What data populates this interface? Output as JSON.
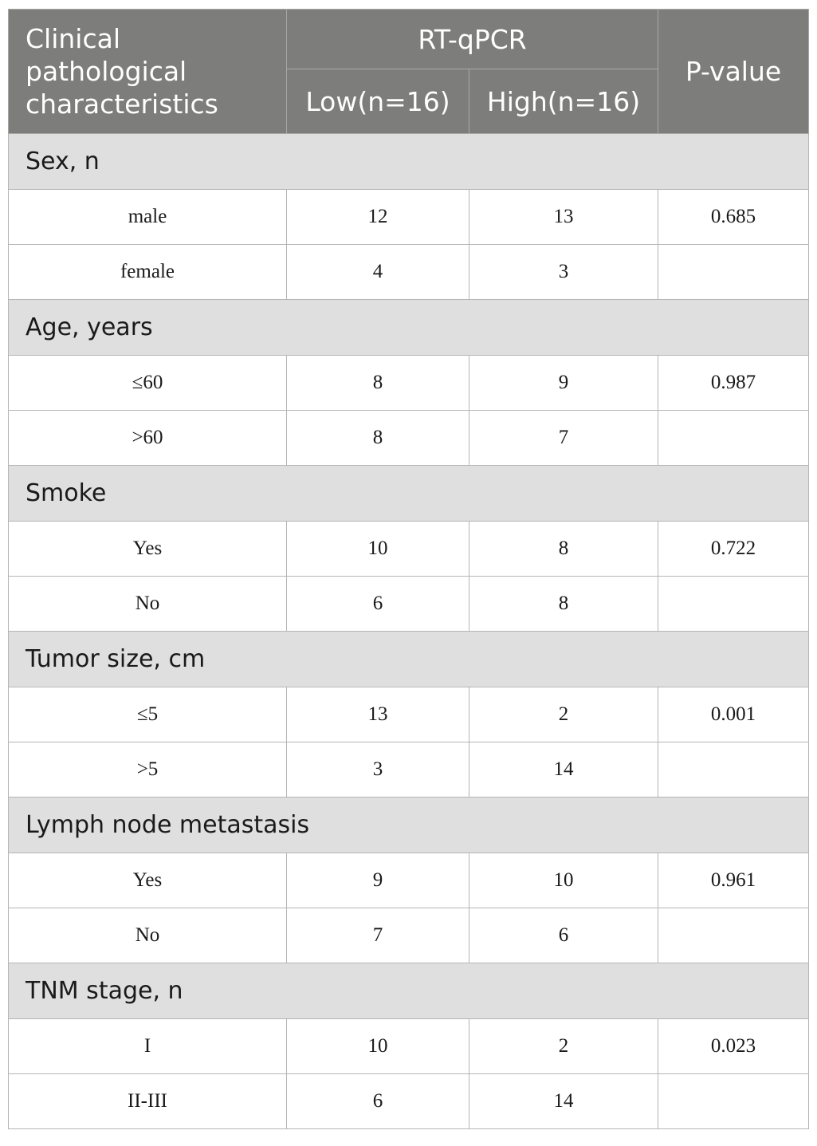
{
  "header": {
    "characteristics": "Clinical pathological characteristics",
    "rt_qpcr": "RT-qPCR",
    "low": "Low(n=16)",
    "high": "High(n=16)",
    "p_value": "P-value"
  },
  "sections": [
    {
      "title": "Sex, n",
      "rows": [
        {
          "label": "male",
          "low": "12",
          "high": "13",
          "p": "0.685"
        },
        {
          "label": "female",
          "low": "4",
          "high": "3",
          "p": ""
        }
      ]
    },
    {
      "title": "Age, years",
      "rows": [
        {
          "label": "≤60",
          "low": "8",
          "high": "9",
          "p": "0.987"
        },
        {
          "label": ">60",
          "low": "8",
          "high": "7",
          "p": ""
        }
      ]
    },
    {
      "title": "Smoke",
      "rows": [
        {
          "label": "Yes",
          "low": "10",
          "high": "8",
          "p": "0.722"
        },
        {
          "label": "No",
          "low": "6",
          "high": "8",
          "p": ""
        }
      ]
    },
    {
      "title": "Tumor size, cm",
      "rows": [
        {
          "label": "≤5",
          "low": "13",
          "high": "2",
          "p": "0.001"
        },
        {
          "label": ">5",
          "low": "3",
          "high": "14",
          "p": ""
        }
      ]
    },
    {
      "title": "Lymph node metastasis",
      "rows": [
        {
          "label": "Yes",
          "low": "9",
          "high": "10",
          "p": "0.961"
        },
        {
          "label": "No",
          "low": "7",
          "high": "6",
          "p": ""
        }
      ]
    },
    {
      "title": "TNM stage, n",
      "rows": [
        {
          "label": "I",
          "low": "10",
          "high": "2",
          "p": "0.023"
        },
        {
          "label": "II-III",
          "low": "6",
          "high": "14",
          "p": ""
        }
      ]
    }
  ]
}
